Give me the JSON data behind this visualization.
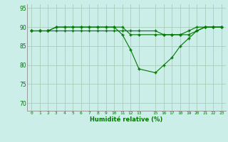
{
  "title": "",
  "xlabel": "Humidité relative (%)",
  "ylabel": "",
  "bg_color": "#cceee8",
  "grid_color": "#aaccbb",
  "line_color": "#007700",
  "ylim": [
    68,
    96
  ],
  "xlim": [
    -0.5,
    23.5
  ],
  "yticks": [
    70,
    75,
    80,
    85,
    90,
    95
  ],
  "xtick_positions": [
    0,
    1,
    2,
    3,
    4,
    5,
    6,
    7,
    8,
    9,
    10,
    11,
    12,
    13,
    15,
    16,
    17,
    18,
    19,
    20,
    21,
    22,
    23
  ],
  "xtick_labels": [
    "0",
    "1",
    "2",
    "3",
    "4",
    "5",
    "6",
    "7",
    "8",
    "9",
    "10",
    "11",
    "12",
    "13",
    "15",
    "16",
    "17",
    "18",
    "19",
    "20",
    "21",
    "22",
    "23"
  ],
  "series": [
    {
      "x": [
        0,
        1,
        2,
        3,
        4,
        5,
        6,
        7,
        8,
        9,
        10,
        11,
        12,
        13,
        15,
        16,
        17,
        18,
        19,
        20,
        21,
        22,
        23
      ],
      "y": [
        89,
        89,
        89,
        89,
        89,
        89,
        89,
        89,
        89,
        89,
        89,
        89,
        89,
        89,
        89,
        88,
        88,
        88,
        89,
        90,
        90,
        90,
        90
      ]
    },
    {
      "x": [
        0,
        1,
        2,
        3,
        4,
        5,
        6,
        7,
        8,
        9,
        10,
        11,
        12,
        13,
        15,
        16,
        17,
        18,
        19,
        20,
        21,
        22,
        23
      ],
      "y": [
        89,
        89,
        89,
        90,
        90,
        90,
        90,
        90,
        90,
        90,
        90,
        90,
        88,
        88,
        88,
        88,
        88,
        88,
        88,
        89,
        90,
        90,
        90
      ]
    },
    {
      "x": [
        0,
        1,
        2,
        3,
        4,
        5,
        6,
        7,
        8,
        9,
        10,
        11,
        12,
        13,
        15,
        16,
        17,
        18,
        19,
        20,
        21,
        22,
        23
      ],
      "y": [
        89,
        89,
        89,
        90,
        90,
        90,
        90,
        90,
        90,
        90,
        90,
        88,
        84,
        79,
        78,
        80,
        82,
        85,
        87,
        89,
        90,
        90,
        90
      ]
    }
  ]
}
